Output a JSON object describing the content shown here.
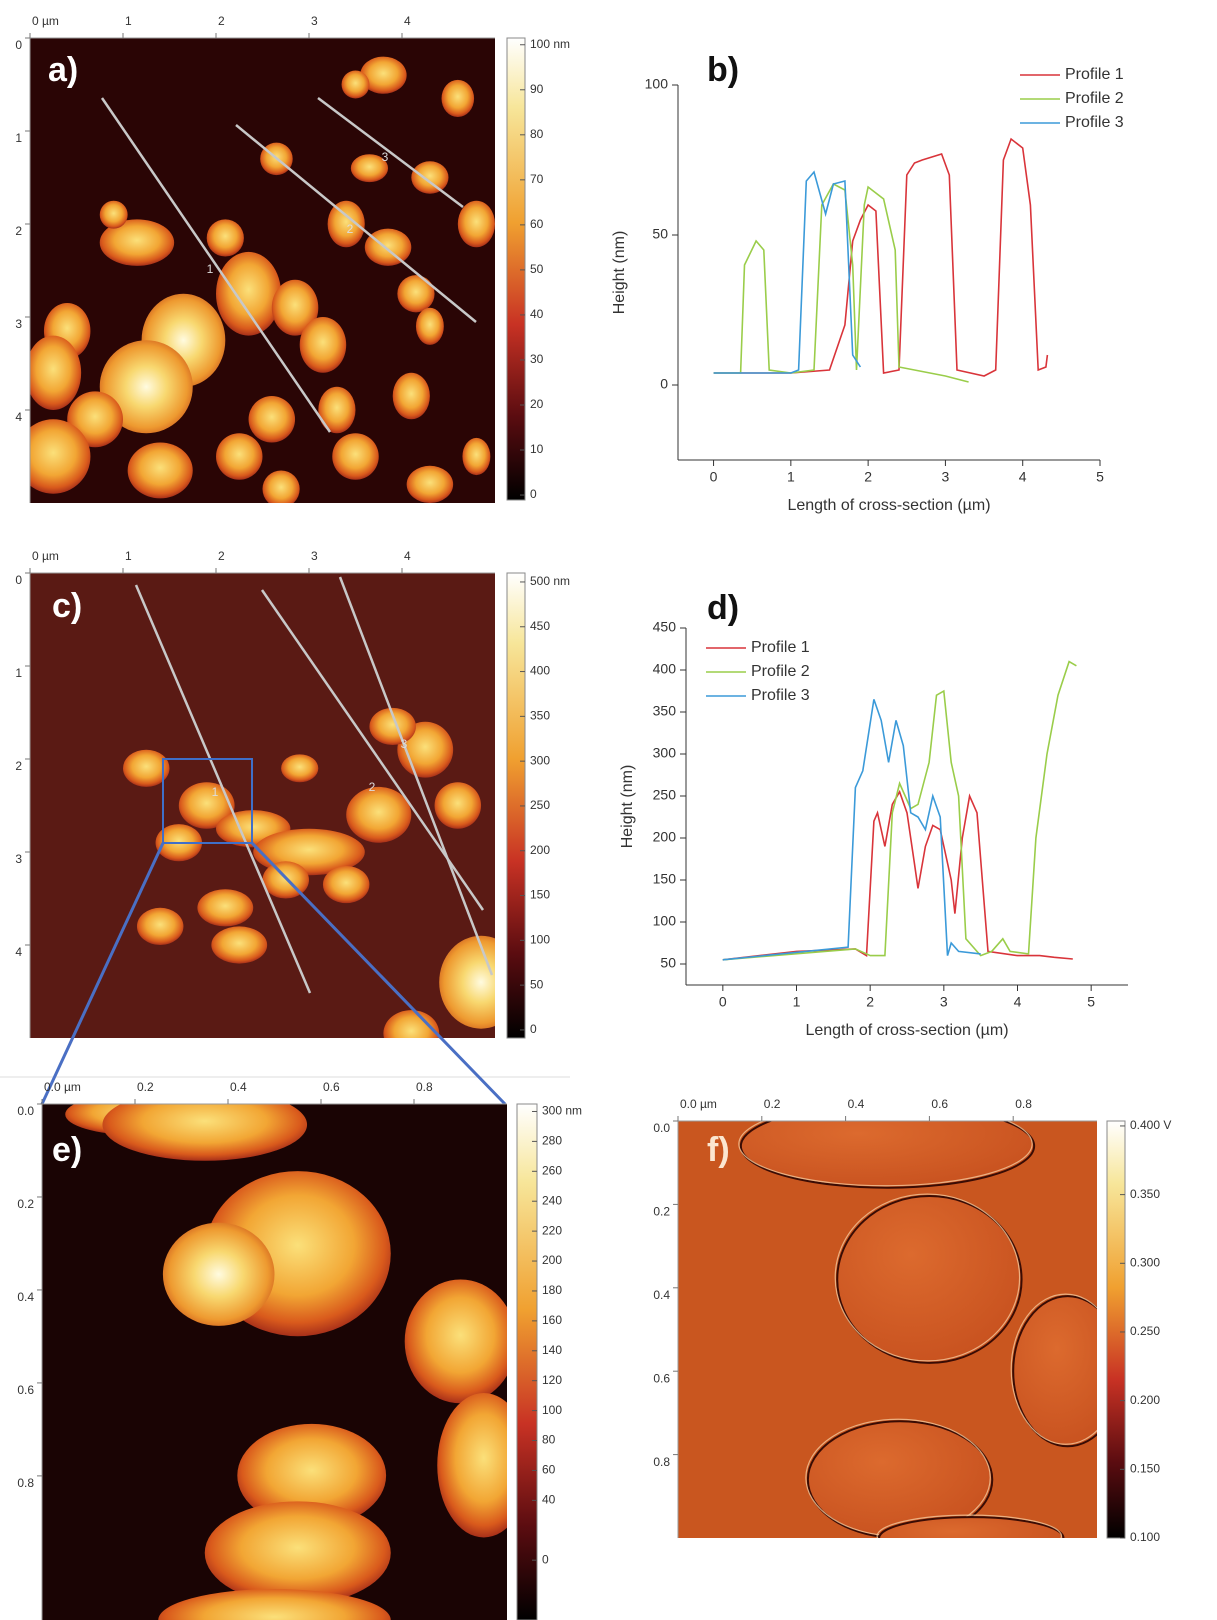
{
  "chart_data": [
    {
      "type": "image",
      "panel_label": "a)",
      "xlim": [
        0,
        5
      ],
      "ylim": [
        0,
        5
      ],
      "xticks": [
        {
          "value": 0,
          "label": "0 µm"
        },
        1,
        2,
        3,
        4
      ],
      "yticks": [
        0,
        1,
        2,
        3,
        4
      ],
      "colorbar_lim": [
        -1.1,
        101.5
      ],
      "colorbar_ticks": [
        {
          "value": 100,
          "label": "100 nm"
        },
        90,
        80,
        70,
        60,
        50,
        40,
        30,
        20,
        10,
        0
      ],
      "profile_labels": [
        "1",
        "2",
        "3"
      ]
    },
    {
      "type": "line",
      "panel_label": "b)",
      "xlabel": "Length of cross-section (µm)",
      "ylabel": "Height (nm)",
      "xlim": [
        -0.46,
        5
      ],
      "ylim": [
        -25,
        100
      ],
      "xticks": [
        0,
        1,
        2,
        3,
        4,
        5
      ],
      "yticks": [
        0,
        50,
        100
      ],
      "legend": "upper right",
      "series": [
        {
          "name": "Profile 1",
          "color": "#d9343a",
          "x": [
            0,
            1.0,
            1.5,
            1.7,
            1.8,
            1.9,
            2.0,
            2.1,
            2.2,
            2.4,
            2.5,
            2.6,
            2.7,
            2.95,
            3.05,
            3.15,
            3.5,
            3.65,
            3.75,
            3.85,
            4.0,
            4.1,
            4.2,
            4.3,
            4.32
          ],
          "values": [
            4,
            4,
            5,
            20,
            48,
            55,
            60,
            58,
            4,
            5,
            70,
            74,
            75,
            77,
            70,
            5,
            3,
            5,
            75,
            82,
            79,
            60,
            5,
            6,
            10
          ]
        },
        {
          "name": "Profile 2",
          "color": "#9acd4a",
          "x": [
            0,
            0.35,
            0.4,
            0.55,
            0.65,
            0.72,
            1.0,
            1.3,
            1.4,
            1.55,
            1.7,
            1.8,
            1.85,
            1.95,
            2.0,
            2.2,
            2.35,
            2.4,
            2.6,
            3.0,
            3.3
          ],
          "values": [
            4,
            4,
            40,
            48,
            45,
            5,
            4,
            5,
            60,
            67,
            65,
            40,
            5,
            60,
            66,
            62,
            45,
            6,
            5,
            3,
            1
          ]
        },
        {
          "name": "Profile 3",
          "color": "#3b9ad9",
          "x": [
            0,
            1.0,
            1.1,
            1.2,
            1.3,
            1.45,
            1.55,
            1.7,
            1.8,
            1.9
          ],
          "values": [
            4,
            4,
            5,
            68,
            71,
            57,
            67,
            68,
            10,
            6
          ]
        }
      ]
    },
    {
      "type": "image",
      "panel_label": "c)",
      "xlim": [
        0,
        5
      ],
      "ylim": [
        0,
        5
      ],
      "xticks": [
        {
          "value": 0,
          "label": "0 µm"
        },
        1,
        2,
        3,
        4
      ],
      "yticks": [
        0,
        1,
        2,
        3,
        4
      ],
      "colorbar_lim": [
        -9,
        510
      ],
      "colorbar_ticks": [
        {
          "value": 500,
          "label": "500 nm"
        },
        450,
        400,
        350,
        300,
        250,
        200,
        150,
        100,
        50,
        0
      ],
      "profile_labels": [
        "1",
        "2",
        "3"
      ]
    },
    {
      "type": "line",
      "panel_label": "d)",
      "xlabel": "Length of cross-section (µm)",
      "ylabel": "Height (nm)",
      "xlim": [
        -0.5,
        5.5
      ],
      "ylim": [
        25,
        450
      ],
      "xticks": [
        0,
        1,
        2,
        3,
        4,
        5
      ],
      "yticks": [
        50,
        100,
        150,
        200,
        250,
        300,
        350,
        400,
        450
      ],
      "legend": "upper left",
      "series": [
        {
          "name": "Profile 1",
          "color": "#d9343a",
          "x": [
            0,
            1,
            1.8,
            1.95,
            2.05,
            2.1,
            2.2,
            2.3,
            2.4,
            2.5,
            2.6,
            2.65,
            2.75,
            2.85,
            2.95,
            3.1,
            3.15,
            3.25,
            3.35,
            3.45,
            3.55,
            3.6,
            4.0,
            4.3,
            4.5,
            4.75
          ],
          "values": [
            55,
            65,
            68,
            60,
            220,
            230,
            190,
            240,
            255,
            230,
            170,
            140,
            190,
            215,
            210,
            150,
            110,
            200,
            250,
            230,
            120,
            65,
            60,
            60,
            58,
            56
          ]
        },
        {
          "name": "Profile 2",
          "color": "#9acd4a",
          "x": [
            0,
            1.8,
            2.0,
            2.2,
            2.3,
            2.4,
            2.55,
            2.65,
            2.8,
            2.9,
            3.0,
            3.1,
            3.2,
            3.3,
            3.5,
            3.65,
            3.8,
            3.9,
            4.15,
            4.25,
            4.4,
            4.55,
            4.7,
            4.8
          ],
          "values": [
            55,
            68,
            60,
            60,
            230,
            265,
            235,
            240,
            290,
            370,
            375,
            290,
            250,
            80,
            60,
            65,
            80,
            65,
            62,
            200,
            300,
            370,
            410,
            405
          ]
        },
        {
          "name": "Profile 3",
          "color": "#3b9ad9",
          "x": [
            0,
            1.7,
            1.8,
            1.9,
            2.05,
            2.15,
            2.25,
            2.35,
            2.45,
            2.55,
            2.65,
            2.75,
            2.85,
            2.95,
            3.05,
            3.1,
            3.2,
            3.5
          ],
          "values": [
            55,
            70,
            260,
            280,
            365,
            340,
            290,
            340,
            310,
            230,
            225,
            210,
            250,
            225,
            60,
            75,
            65,
            62
          ]
        }
      ]
    },
    {
      "type": "image",
      "panel_label": "e)",
      "xlim": [
        0,
        1
      ],
      "ylim": [
        0,
        1.11
      ],
      "xticks": [
        {
          "value": 0,
          "label": "0.0 µm"
        },
        0.2,
        0.4,
        0.6,
        0.8
      ],
      "yticks": [
        {
          "value": 0,
          "label": "0.0"
        },
        0.2,
        0.4,
        0.6,
        0.8
      ],
      "colorbar_lim": [
        -40,
        305
      ],
      "colorbar_ticks": [
        {
          "value": 300,
          "label": "300 nm"
        },
        280,
        260,
        240,
        220,
        200,
        180,
        160,
        140,
        120,
        100,
        80,
        60,
        40,
        0
      ]
    },
    {
      "type": "image",
      "panel_label": "f)",
      "xlim": [
        0,
        1
      ],
      "ylim": [
        0,
        1
      ],
      "xticks": [
        {
          "value": 0,
          "label": "0.0 µm"
        },
        0.2,
        0.4,
        0.6,
        0.8
      ],
      "yticks": [
        {
          "value": 0,
          "label": "0.0"
        },
        0.2,
        0.4,
        0.6,
        0.8
      ],
      "colorbar_lim": [
        0.1,
        0.4036
      ],
      "colorbar_ticks": [
        {
          "value": 0.4,
          "label": "0.400 V"
        },
        {
          "value": 0.35,
          "label": "0.350"
        },
        {
          "value": 0.3,
          "label": "0.300"
        },
        {
          "value": 0.25,
          "label": "0.250"
        },
        {
          "value": 0.2,
          "label": "0.200"
        },
        {
          "value": 0.15,
          "label": "0.150"
        },
        {
          "value": 0.1,
          "label": "0.100"
        }
      ]
    }
  ]
}
